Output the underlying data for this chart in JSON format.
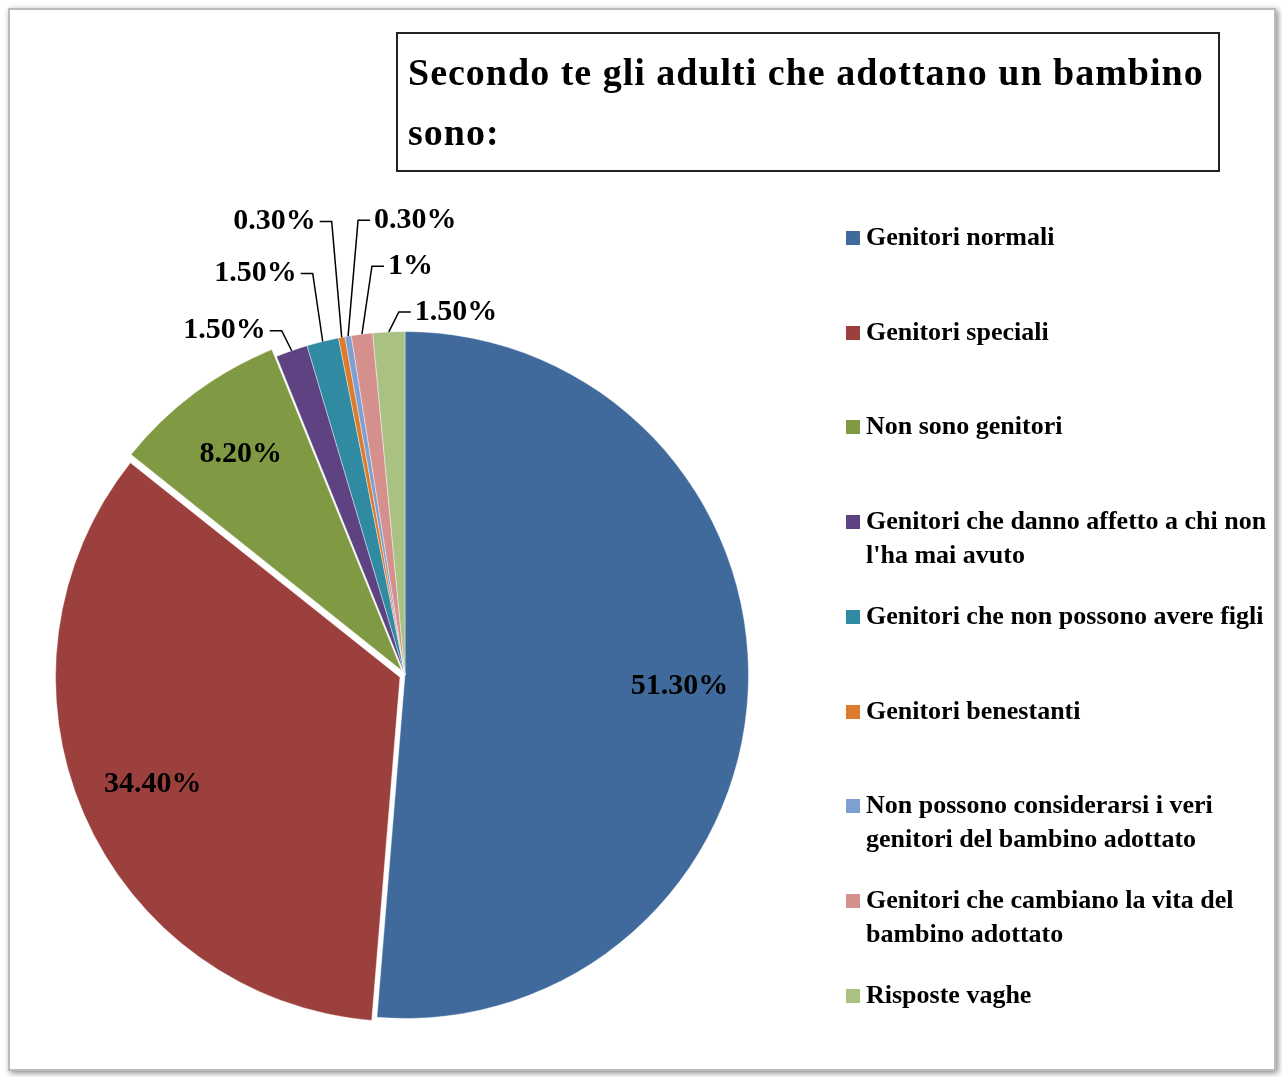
{
  "chart_data": {
    "type": "pie",
    "title": "Secondo te gli adulti che adottano un bambino sono:",
    "categories": [
      "Genitori normali",
      "Genitori speciali",
      "Non sono genitori",
      "Genitori che danno affetto a chi non l'ha mai avuto",
      "Genitori che non possono avere figli",
      "Genitori benestanti",
      "Non possono considerarsi i veri genitori del bambino adottato",
      "Genitori che cambiano la vita del bambino adottato",
      "Risposte vaghe"
    ],
    "values": [
      51.3,
      34.4,
      8.2,
      1.5,
      1.5,
      0.3,
      0.3,
      1,
      1.5
    ],
    "value_labels": [
      "51.30%",
      "34.40%",
      "8.20%",
      "1.50%",
      "1.50%",
      "0.30%",
      "0.30%",
      "1%",
      "1.50%"
    ],
    "colors": [
      "#416a9c",
      "#9c403d",
      "#7f9a42",
      "#5f4282",
      "#2f8aa2",
      "#dc7b2c",
      "#7d9fd1",
      "#d5908d",
      "#a9c283"
    ],
    "legend": "right"
  }
}
